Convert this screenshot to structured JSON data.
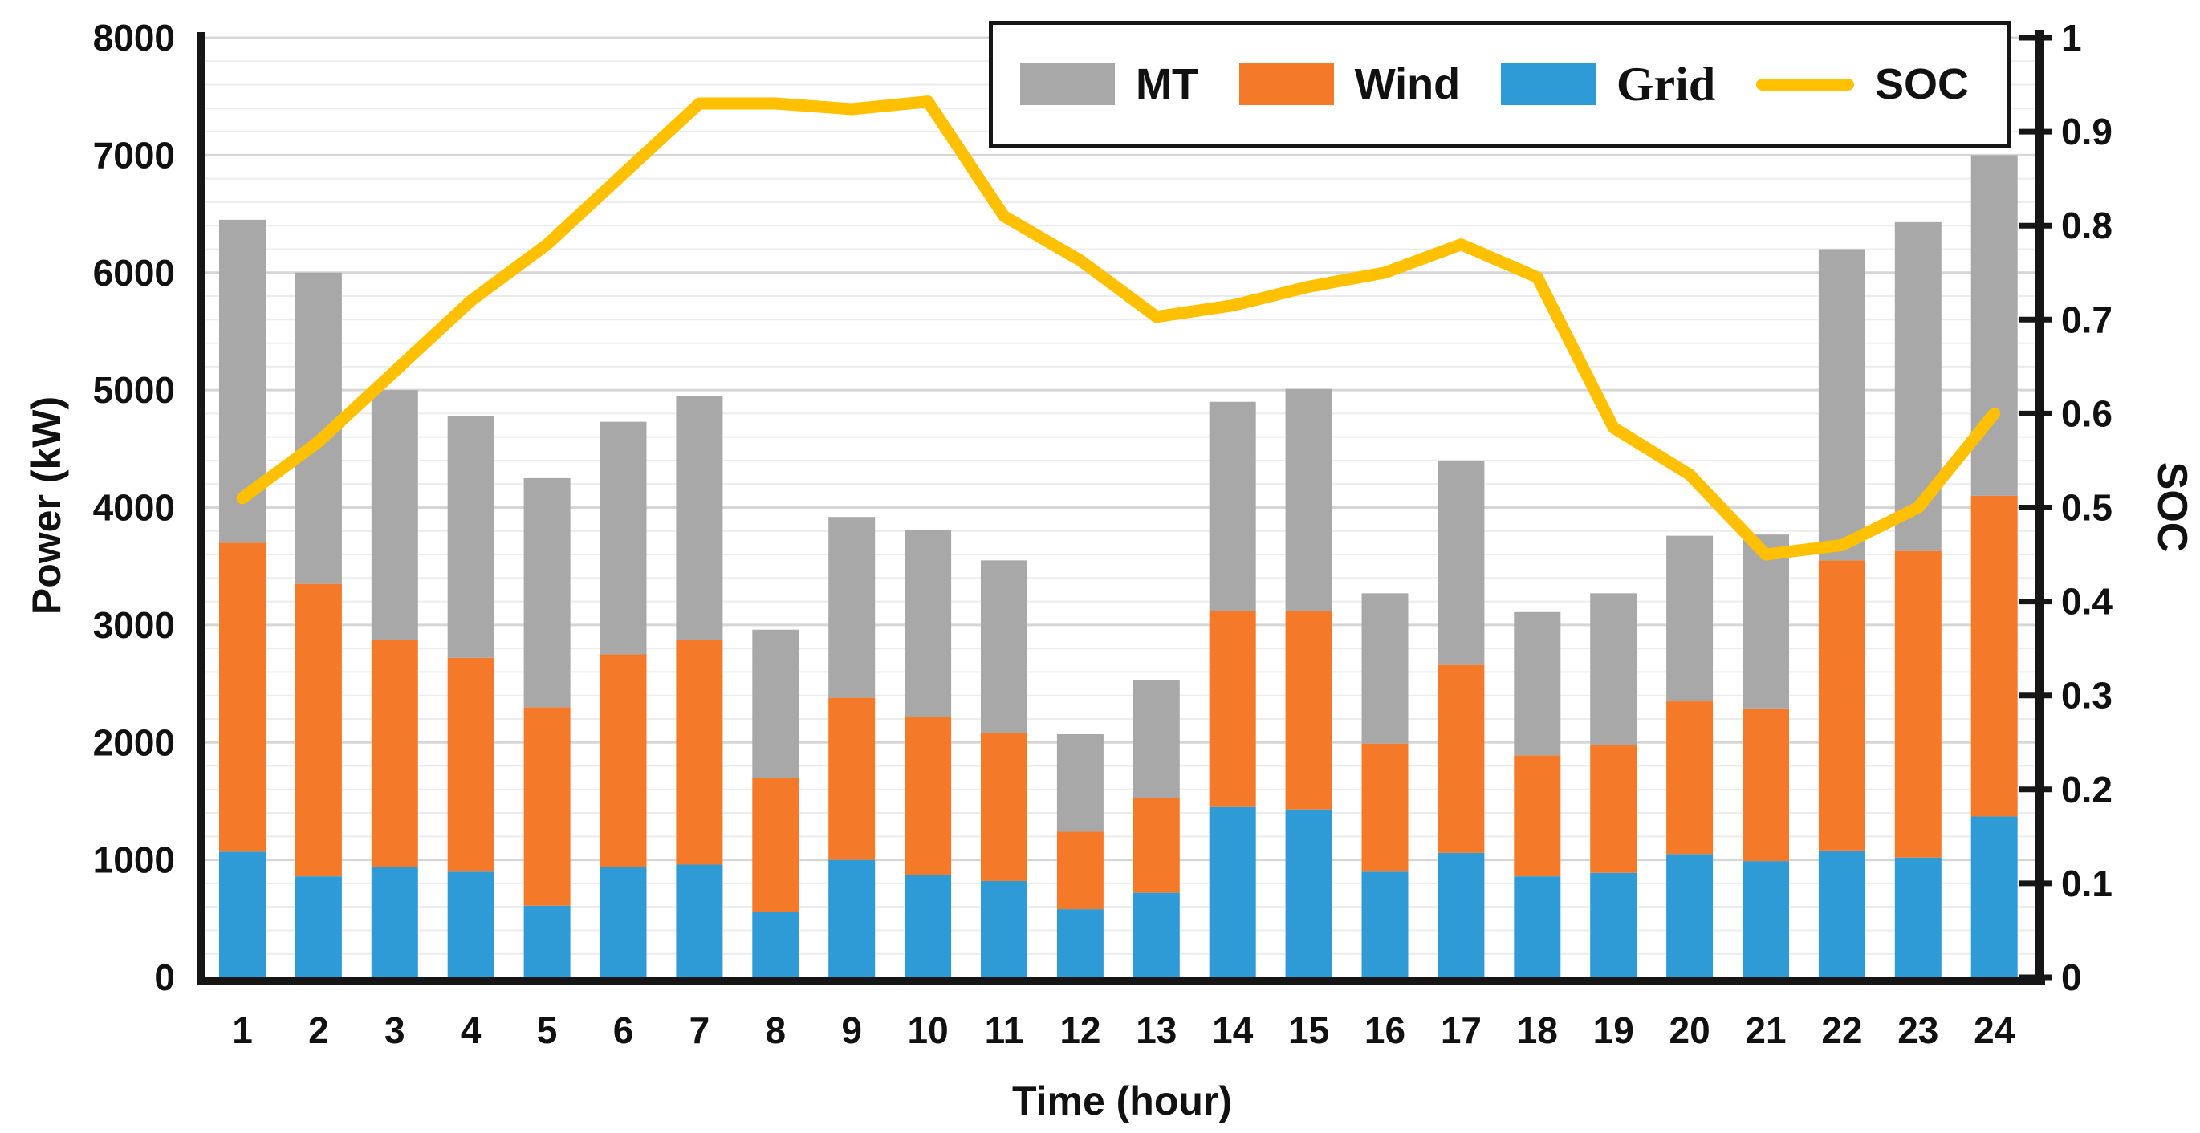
{
  "figure": {
    "left_axis_title": "Power (kW)",
    "bottom_axis_title": "Time (hour)",
    "right_axis_title": "SOC"
  },
  "chart_data": {
    "type": "bar",
    "subtype": "stacked-bars-with-line-overlay",
    "title": "",
    "xlabel": "Time (hour)",
    "ylabel_left": "Power (kW)",
    "ylabel_right": "SOC",
    "categories": [
      "1",
      "2",
      "3",
      "4",
      "5",
      "6",
      "7",
      "8",
      "9",
      "10",
      "11",
      "12",
      "13",
      "14",
      "15",
      "16",
      "17",
      "18",
      "19",
      "20",
      "21",
      "22",
      "23",
      "24"
    ],
    "left_axis": {
      "min": 0,
      "max": 8000,
      "tick_step": 1000,
      "ticks": [
        "8000",
        "7000",
        "6000",
        "5000",
        "4000",
        "3000",
        "2000",
        "1000",
        "0"
      ]
    },
    "right_axis": {
      "min": 0,
      "max": 1,
      "tick_step": 0.1,
      "ticks": [
        "1",
        "0.9",
        "0.8",
        "0.7",
        "0.6",
        "0.5",
        "0.4",
        "0.3",
        "0.2",
        "0.1",
        "0"
      ]
    },
    "grid": {
      "minor_step": 200,
      "major_step": 1000,
      "minor_color": "#ECECEC",
      "major_color": "#D6D6D6"
    },
    "series": [
      {
        "name": "Grid",
        "type": "bar",
        "stack": 1,
        "color": "#2E9BD6",
        "values": [
          1070,
          860,
          940,
          900,
          610,
          940,
          960,
          560,
          1000,
          870,
          820,
          580,
          720,
          1450,
          1430,
          900,
          1060,
          860,
          890,
          1050,
          990,
          1080,
          1020,
          1370
        ]
      },
      {
        "name": "Wind",
        "type": "bar",
        "stack": 2,
        "color": "#F47A2A",
        "values": [
          2630,
          2490,
          1930,
          1820,
          1690,
          1810,
          1910,
          1140,
          1380,
          1350,
          1260,
          660,
          810,
          1670,
          1690,
          1090,
          1600,
          1030,
          1090,
          1300,
          1300,
          2470,
          2610,
          2730
        ]
      },
      {
        "name": "MT",
        "type": "bar",
        "stack": 3,
        "color": "#A8A8A8",
        "values": [
          2750,
          2650,
          2130,
          2060,
          1950,
          1980,
          2080,
          1260,
          1540,
          1590,
          1470,
          830,
          1000,
          1780,
          1890,
          1280,
          1740,
          1220,
          1290,
          1410,
          1480,
          2650,
          2800,
          2900
        ]
      },
      {
        "name": "SOC",
        "type": "line",
        "axis": "right",
        "color": "#FFC000",
        "values": [
          0.51,
          0.57,
          0.645,
          0.72,
          0.78,
          0.855,
          0.93,
          0.93,
          0.924,
          0.932,
          0.81,
          0.763,
          0.703,
          0.715,
          0.735,
          0.75,
          0.78,
          0.745,
          0.585,
          0.535,
          0.45,
          0.46,
          0.5,
          0.6
        ]
      }
    ],
    "stacked_totals": [
      6450,
      6000,
      5000,
      4780,
      4250,
      4730,
      4950,
      2960,
      3920,
      3810,
      3550,
      2070,
      2530,
      4900,
      5010,
      3270,
      4400,
      3110,
      3270,
      3760,
      3770,
      6200,
      6430,
      7000
    ],
    "legend": {
      "position": "top-right",
      "entries": [
        {
          "label": "MT",
          "color": "#A8A8A8",
          "marker": "rect"
        },
        {
          "label": "Wind",
          "color": "#F47A2A",
          "marker": "rect"
        },
        {
          "label": "Grid",
          "color": "#2E9BD6",
          "marker": "rect"
        },
        {
          "label": "SOC",
          "color": "#FFC000",
          "marker": "line"
        }
      ]
    },
    "axis_color": "#161616",
    "tick_label_color": "#111111"
  }
}
